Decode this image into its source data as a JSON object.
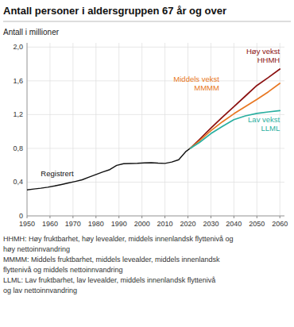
{
  "chart_data": {
    "type": "line",
    "title": "Antall personer i aldersgruppen 67 år og over",
    "y_label": "Antall i millioner",
    "xlim": [
      1950,
      2062
    ],
    "xticks": [
      1950,
      1960,
      1970,
      1980,
      1990,
      2000,
      2010,
      2020,
      2030,
      2040,
      2050,
      2060
    ],
    "ylim": [
      0,
      2.05
    ],
    "yticks": [
      0,
      {
        "value": 0.4,
        "label": "0,4"
      },
      {
        "value": 0.8,
        "label": "0,8"
      },
      {
        "value": 1.2,
        "label": "1,2"
      },
      {
        "value": 1.6,
        "label": "1,6"
      },
      {
        "value": 2.0,
        "label": "2,0"
      }
    ],
    "grid": true,
    "series": [
      {
        "name": "Registrert",
        "color": "#111111",
        "x": [
          1950,
          1953,
          1956,
          1959,
          1962,
          1965,
          1968,
          1971,
          1974,
          1977,
          1980,
          1983,
          1986,
          1989,
          1992,
          1995,
          1998,
          2001,
          2004,
          2007,
          2010,
          2013,
          2016,
          2019,
          2021
        ],
        "values": [
          0.308,
          0.318,
          0.328,
          0.34,
          0.355,
          0.372,
          0.39,
          0.408,
          0.428,
          0.46,
          0.49,
          0.52,
          0.548,
          0.598,
          0.618,
          0.62,
          0.623,
          0.628,
          0.63,
          0.625,
          0.622,
          0.638,
          0.665,
          0.76,
          0.8
        ]
      },
      {
        "name": "Høy vekst\nHHMH",
        "color": "#8B1010",
        "x": [
          2021,
          2025,
          2030,
          2035,
          2040,
          2045,
          2050,
          2055,
          2060
        ],
        "values": [
          0.8,
          0.905,
          1.04,
          1.17,
          1.295,
          1.42,
          1.545,
          1.64,
          1.74
        ]
      },
      {
        "name": "Middels vekst\nMMMM",
        "color": "#E87722",
        "x": [
          2021,
          2025,
          2030,
          2035,
          2040,
          2045,
          2050,
          2055,
          2060
        ],
        "values": [
          0.8,
          0.89,
          1.01,
          1.115,
          1.21,
          1.295,
          1.38,
          1.47,
          1.57
        ]
      },
      {
        "name": "Lav vekst\nLLML",
        "color": "#2AAFA0",
        "x": [
          2021,
          2025,
          2030,
          2035,
          2040,
          2045,
          2050,
          2055,
          2060
        ],
        "values": [
          0.8,
          0.87,
          0.975,
          1.06,
          1.14,
          1.185,
          1.215,
          1.232,
          1.248
        ]
      }
    ],
    "footnotes": [
      "HHMH: Høy fruktbarhet, høy levealder, middels innenlandsk flyttenivå og",
      "høy nettoinnvandring",
      "MMMM: Middels fruktbarhet, middels levealder, middels innenlandsk",
      "flyttenivå og middels nettoinnvandring",
      "LLML: Lav fruktbarhet, lav levealder, middels innenlandsk flyttenivå",
      "og lav nettoinnvandring"
    ]
  }
}
